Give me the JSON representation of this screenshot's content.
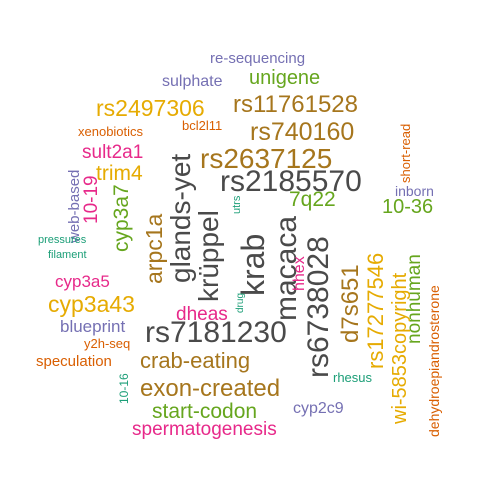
{
  "colors": {
    "teal": "#1b9e77",
    "orange": "#d95f02",
    "purple": "#7570b3",
    "magenta": "#e7298a",
    "green": "#66a61e",
    "gold": "#e6ab02",
    "brown": "#a6761d",
    "gray": "#4a4a4a"
  },
  "words": [
    {
      "text": "re-sequencing",
      "color": "purple"
    },
    {
      "text": "sulphate",
      "color": "purple"
    },
    {
      "text": "unigene",
      "color": "green"
    },
    {
      "text": "rs2497306",
      "color": "gold"
    },
    {
      "text": "rs11761528",
      "color": "brown"
    },
    {
      "text": "bcl2l11",
      "color": "orange"
    },
    {
      "text": "xenobiotics",
      "color": "orange"
    },
    {
      "text": "rs740160",
      "color": "brown"
    },
    {
      "text": "sult2a1",
      "color": "magenta"
    },
    {
      "text": "rs2637125",
      "color": "brown"
    },
    {
      "text": "trim4",
      "color": "gold"
    },
    {
      "text": "rs2185570",
      "color": "gray"
    },
    {
      "text": "inborn",
      "color": "purple"
    },
    {
      "text": "short-read",
      "color": "orange"
    },
    {
      "text": "web-based",
      "color": "purple"
    },
    {
      "text": "10-19",
      "color": "magenta"
    },
    {
      "text": "glands-yet",
      "color": "gray"
    },
    {
      "text": "krüppel",
      "color": "gray"
    },
    {
      "text": "utrs",
      "color": "teal"
    },
    {
      "text": "krab",
      "color": "gray"
    },
    {
      "text": "macaca",
      "color": "gray"
    },
    {
      "text": "7q22",
      "color": "green"
    },
    {
      "text": "10-36",
      "color": "green"
    },
    {
      "text": "cyp3a7",
      "color": "green"
    },
    {
      "text": "arpc1a",
      "color": "brown"
    },
    {
      "text": "rs6738028",
      "color": "gray"
    },
    {
      "text": "d7s651",
      "color": "brown"
    },
    {
      "text": "rs17277546",
      "color": "gold"
    },
    {
      "text": "pressures",
      "color": "teal"
    },
    {
      "text": "filament",
      "color": "teal"
    },
    {
      "text": "nonhuman",
      "color": "green"
    },
    {
      "text": "dehydroepiandrosterone",
      "color": "orange"
    },
    {
      "text": "hhex",
      "color": "magenta"
    },
    {
      "text": "drug",
      "color": "teal"
    },
    {
      "text": "cyp3a5",
      "color": "magenta"
    },
    {
      "text": "cyp3a43",
      "color": "gold"
    },
    {
      "text": "dheas",
      "color": "magenta"
    },
    {
      "text": "wi-5853copyright",
      "color": "gold"
    },
    {
      "text": "blueprint",
      "color": "purple"
    },
    {
      "text": "rs7181230",
      "color": "gray"
    },
    {
      "text": "y2h-seq",
      "color": "orange"
    },
    {
      "text": "crab-eating",
      "color": "brown"
    },
    {
      "text": "speculation",
      "color": "orange"
    },
    {
      "text": "exon-created",
      "color": "brown"
    },
    {
      "text": "rhesus",
      "color": "teal"
    },
    {
      "text": "10-16",
      "color": "teal"
    },
    {
      "text": "start-codon",
      "color": "green"
    },
    {
      "text": "cyp2c9",
      "color": "purple"
    },
    {
      "text": "spermatogenesis",
      "color": "magenta"
    }
  ]
}
